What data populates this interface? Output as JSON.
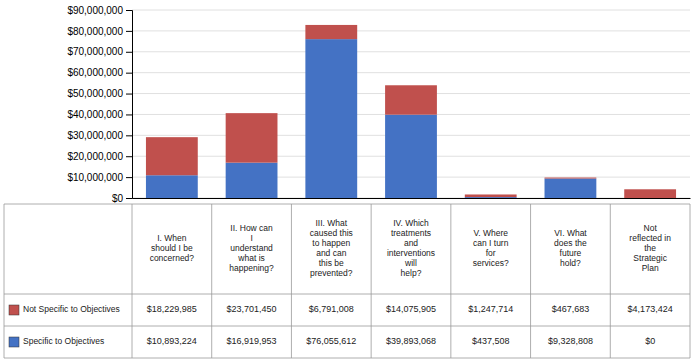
{
  "chart_data": {
    "type": "bar",
    "stacked": true,
    "grid": true,
    "categories": [
      "I. When\nshould I be\nconcerned?",
      "II. How can\nI\nunderstand\nwhat is\nhappening?",
      "III. What\ncaused this\nto happen\nand can\nthis be\nprevented?",
      "IV. Which\ntreatments\nand\ninterventions\nwill\nhelp?",
      "V. Where\ncan I turn\nfor\nservices?",
      "VI. What\ndoes the\nfuture\nhold?",
      "Not\nreflected in\nthe\nStrategic\nPlan"
    ],
    "series": [
      {
        "name": "Specific to Objectives",
        "color": "#4472C4",
        "values": [
          10893224,
          16919953,
          76055612,
          39893068,
          437508,
          9328808,
          0
        ],
        "value_labels": [
          "$10,893,224",
          "$16,919,953",
          "$76,055,612",
          "$39,893,068",
          "$437,508",
          "$9,328,808",
          "$0"
        ]
      },
      {
        "name": "Not Specific to Objectives",
        "color": "#C0504D",
        "values": [
          18229985,
          23701450,
          6791008,
          14075905,
          1247714,
          467683,
          4173424
        ],
        "value_labels": [
          "$18,229,985",
          "$23,701,450",
          "$6,791,008",
          "$14,075,905",
          "$1,247,714",
          "$467,683",
          "$4,173,424"
        ]
      }
    ],
    "ylim": [
      0,
      90000000
    ],
    "yticks": [
      {
        "value": 0,
        "label": "$0"
      },
      {
        "value": 10000000,
        "label": "$10,000,000"
      },
      {
        "value": 20000000,
        "label": "$20,000,000"
      },
      {
        "value": 30000000,
        "label": "$30,000,000"
      },
      {
        "value": 40000000,
        "label": "$40,000,000"
      },
      {
        "value": 50000000,
        "label": "$50,000,000"
      },
      {
        "value": 60000000,
        "label": "$60,000,000"
      },
      {
        "value": 70000000,
        "label": "$70,000,000"
      },
      {
        "value": 80000000,
        "label": "$80,000,000"
      },
      {
        "value": 90000000,
        "label": "$90,000,000"
      }
    ]
  }
}
